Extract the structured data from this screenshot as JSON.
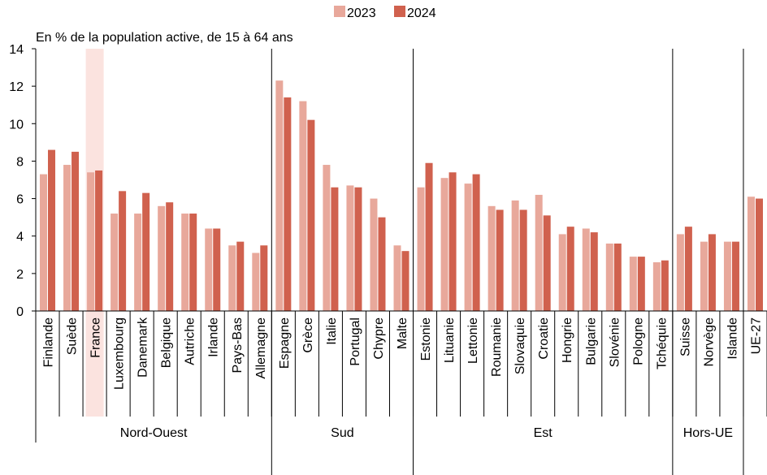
{
  "chart_data": {
    "type": "bar",
    "subtitle": "En % de la population active, de 15 à 64 ans",
    "ylim": [
      0,
      14
    ],
    "yticks": [
      0,
      2,
      4,
      6,
      8,
      10,
      12,
      14
    ],
    "grid": false,
    "legend_position": "top-center",
    "highlight_category": "France",
    "colors": {
      "2023": "#e8a89b",
      "2024": "#d0614e",
      "highlight": "#fbe3df"
    },
    "series": [
      {
        "name": "2023"
      },
      {
        "name": "2024"
      }
    ],
    "groups": [
      {
        "name": "Nord-Ouest",
        "items": [
          {
            "category": "Finlande",
            "values": [
              7.3,
              8.6
            ]
          },
          {
            "category": "Suède",
            "values": [
              7.8,
              8.5
            ]
          },
          {
            "category": "France",
            "values": [
              7.4,
              7.5
            ]
          },
          {
            "category": "Luxembourg",
            "values": [
              5.2,
              6.4
            ]
          },
          {
            "category": "Danemark",
            "values": [
              5.2,
              6.3
            ]
          },
          {
            "category": "Belgique",
            "values": [
              5.6,
              5.8
            ]
          },
          {
            "category": "Autriche",
            "values": [
              5.2,
              5.2
            ]
          },
          {
            "category": "Irlande",
            "values": [
              4.4,
              4.4
            ]
          },
          {
            "category": "Pays-Bas",
            "values": [
              3.5,
              3.7
            ]
          },
          {
            "category": "Allemagne",
            "values": [
              3.1,
              3.5
            ]
          }
        ]
      },
      {
        "name": "Sud",
        "items": [
          {
            "category": "Espagne",
            "values": [
              12.3,
              11.4
            ]
          },
          {
            "category": "Grèce",
            "values": [
              11.2,
              10.2
            ]
          },
          {
            "category": "Italie",
            "values": [
              7.8,
              6.6
            ]
          },
          {
            "category": "Portugal",
            "values": [
              6.7,
              6.6
            ]
          },
          {
            "category": "Chypre",
            "values": [
              6.0,
              5.0
            ]
          },
          {
            "category": "Malte",
            "values": [
              3.5,
              3.2
            ]
          }
        ]
      },
      {
        "name": "Est",
        "items": [
          {
            "category": "Estonie",
            "values": [
              6.6,
              7.9
            ]
          },
          {
            "category": "Lituanie",
            "values": [
              7.1,
              7.4
            ]
          },
          {
            "category": "Lettonie",
            "values": [
              6.8,
              7.3
            ]
          },
          {
            "category": "Roumanie",
            "values": [
              5.6,
              5.4
            ]
          },
          {
            "category": "Slovaquie",
            "values": [
              5.9,
              5.4
            ]
          },
          {
            "category": "Croatie",
            "values": [
              6.2,
              5.1
            ]
          },
          {
            "category": "Hongrie",
            "values": [
              4.1,
              4.5
            ]
          },
          {
            "category": "Bulgarie",
            "values": [
              4.4,
              4.2
            ]
          },
          {
            "category": "Slovénie",
            "values": [
              3.6,
              3.6
            ]
          },
          {
            "category": "Pologne",
            "values": [
              2.9,
              2.9
            ]
          },
          {
            "category": "Tchéquie",
            "values": [
              2.6,
              2.7
            ]
          }
        ]
      },
      {
        "name": "Hors-UE",
        "items": [
          {
            "category": "Suisse",
            "values": [
              4.1,
              4.5
            ]
          },
          {
            "category": "Norvège",
            "values": [
              3.7,
              4.1
            ]
          },
          {
            "category": "Islande",
            "values": [
              3.7,
              3.7
            ]
          }
        ]
      },
      {
        "name": "",
        "items": [
          {
            "category": "UE-27",
            "values": [
              6.1,
              6.0
            ]
          }
        ]
      }
    ]
  }
}
